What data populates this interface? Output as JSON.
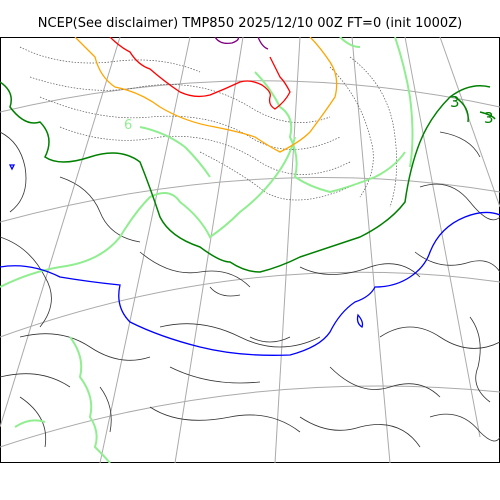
{
  "title": "NCEP(See disclaimer) TMP850 2025/12/10 00Z FT=0 (init 1000Z)",
  "colors": {
    "grid": "#aaaaaa",
    "contour_thin": "#333333",
    "contour_dotted": "#555555",
    "light_green": "#90ee90",
    "dark_green": "#008000",
    "blue": "#0000ff",
    "orange": "#ffa500",
    "red": "#ff0000",
    "purple": "#800080"
  },
  "contour_labels": [
    {
      "text": "3",
      "color": "#008000"
    },
    {
      "text": "3",
      "color": "#008000"
    },
    {
      "text": "6",
      "color": "#90ee90"
    }
  ]
}
